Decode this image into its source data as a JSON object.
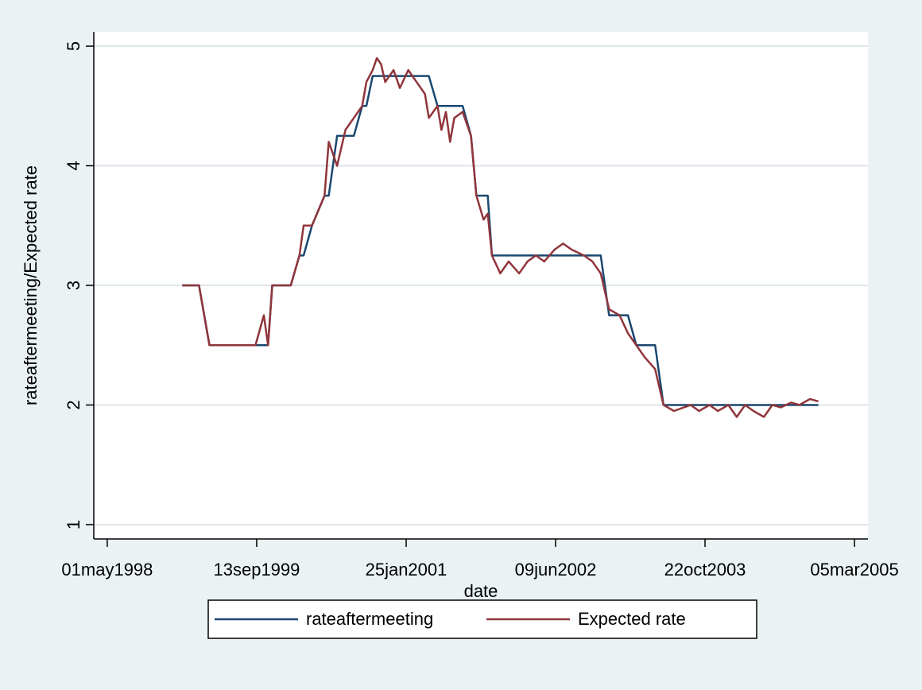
{
  "chart_data": {
    "type": "line",
    "x_label": "date",
    "y_label": "rateaftermeeting/Expected rate",
    "x": [
      "1999-01-07",
      "1999-02-04",
      "1999-03-04",
      "1999-04-08",
      "1999-05-06",
      "1999-06-02",
      "1999-07-01",
      "1999-08-26",
      "1999-09-09",
      "1999-10-07",
      "1999-10-21",
      "1999-11-04",
      "1999-12-02",
      "2000-01-05",
      "2000-02-03",
      "2000-02-17",
      "2000-03-16",
      "2000-04-27",
      "2000-05-11",
      "2000-06-08",
      "2000-07-06",
      "2000-08-03",
      "2000-08-31",
      "2000-09-14",
      "2000-10-05",
      "2000-10-19",
      "2000-11-02",
      "2000-11-16",
      "2000-12-14",
      "2001-01-04",
      "2001-02-01",
      "2001-03-01",
      "2001-03-29",
      "2001-04-11",
      "2001-05-10",
      "2001-05-23",
      "2001-06-07",
      "2001-06-21",
      "2001-07-05",
      "2001-08-02",
      "2001-08-30",
      "2001-09-17",
      "2001-10-11",
      "2001-10-25",
      "2001-11-08",
      "2001-12-06",
      "2002-01-03",
      "2002-02-07",
      "2002-03-07",
      "2002-04-04",
      "2002-05-02",
      "2002-06-06",
      "2002-07-04",
      "2002-08-01",
      "2002-09-12",
      "2002-10-10",
      "2002-11-07",
      "2002-12-05",
      "2003-01-09",
      "2003-02-06",
      "2003-03-06",
      "2003-04-03",
      "2003-05-08",
      "2003-06-05",
      "2003-07-10",
      "2003-09-04",
      "2003-10-02",
      "2003-11-06",
      "2003-12-04",
      "2004-01-08",
      "2004-02-05",
      "2004-03-04",
      "2004-04-01",
      "2004-05-06",
      "2004-06-03",
      "2004-07-01",
      "2004-08-05",
      "2004-09-02",
      "2004-10-07",
      "2004-11-04"
    ],
    "series": [
      {
        "name": "rateaftermeeting",
        "color": "#1a476f",
        "values": [
          3.0,
          3.0,
          3.0,
          2.5,
          2.5,
          2.5,
          2.5,
          2.5,
          2.5,
          2.5,
          2.5,
          3.0,
          3.0,
          3.0,
          3.25,
          3.25,
          3.5,
          3.75,
          3.75,
          4.25,
          4.25,
          4.25,
          4.5,
          4.5,
          4.75,
          4.75,
          4.75,
          4.75,
          4.75,
          4.75,
          4.75,
          4.75,
          4.75,
          4.75,
          4.5,
          4.5,
          4.5,
          4.5,
          4.5,
          4.5,
          4.25,
          3.75,
          3.75,
          3.75,
          3.25,
          3.25,
          3.25,
          3.25,
          3.25,
          3.25,
          3.25,
          3.25,
          3.25,
          3.25,
          3.25,
          3.25,
          3.25,
          2.75,
          2.75,
          2.75,
          2.5,
          2.5,
          2.5,
          2.0,
          2.0,
          2.0,
          2.0,
          2.0,
          2.0,
          2.0,
          2.0,
          2.0,
          2.0,
          2.0,
          2.0,
          2.0,
          2.0,
          2.0,
          2.0,
          2.0
        ]
      },
      {
        "name": "Expected rate",
        "color": "#90353b",
        "values": [
          3.0,
          3.0,
          3.0,
          2.5,
          2.5,
          2.5,
          2.5,
          2.5,
          2.5,
          2.75,
          2.5,
          3.0,
          3.0,
          3.0,
          3.25,
          3.5,
          3.5,
          3.75,
          4.2,
          4.0,
          4.3,
          4.4,
          4.5,
          4.7,
          4.8,
          4.9,
          4.85,
          4.7,
          4.8,
          4.65,
          4.8,
          4.7,
          4.6,
          4.4,
          4.5,
          4.3,
          4.45,
          4.2,
          4.4,
          4.45,
          4.25,
          3.75,
          3.55,
          3.6,
          3.25,
          3.1,
          3.2,
          3.1,
          3.2,
          3.25,
          3.2,
          3.3,
          3.35,
          3.3,
          3.25,
          3.2,
          3.1,
          2.8,
          2.75,
          2.6,
          2.5,
          2.4,
          2.3,
          2.0,
          1.95,
          2.0,
          1.95,
          2.0,
          1.95,
          2.0,
          1.9,
          2.0,
          1.95,
          1.9,
          2.0,
          1.98,
          2.02,
          2.0,
          2.05,
          2.03
        ]
      }
    ],
    "xlim": [
      "1998-03-17",
      "2005-04-19"
    ],
    "xticks": [
      {
        "value": "1998-05-01",
        "label": "01may1998"
      },
      {
        "value": "1999-09-13",
        "label": "13sep1999"
      },
      {
        "value": "2001-01-25",
        "label": "25jan2001"
      },
      {
        "value": "2002-06-09",
        "label": "09jun2002"
      },
      {
        "value": "2003-10-22",
        "label": "22oct2003"
      },
      {
        "value": "2005-03-05",
        "label": "05mar2005"
      }
    ],
    "ylim": [
      0.88,
      5.12
    ],
    "yticks": [
      1,
      2,
      3,
      4,
      5
    ],
    "grid": true,
    "legend": "bottom"
  }
}
